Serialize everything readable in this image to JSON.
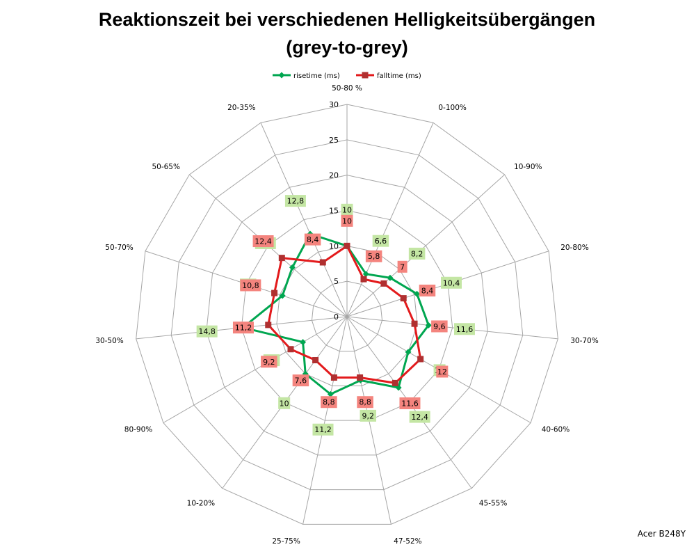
{
  "title_line1": "Reaktionszeit bei verschiedenen Helligkeitsübergängen",
  "title_line2": "(grey-to-grey)",
  "footer": "Acer B248Y",
  "chart_data": {
    "type": "radar",
    "categories": [
      "50-80 %",
      "0-100%",
      "10-90%",
      "20-80%",
      "30-70%",
      "40-60%",
      "45-55%",
      "47-52%",
      "25-75%",
      "10-20%",
      "80-90%",
      "30-50%",
      "50-70%",
      "50-65%",
      "20-35%"
    ],
    "rlim": [
      0,
      30
    ],
    "ticks": [
      0,
      5,
      10,
      15,
      20,
      25,
      30
    ],
    "tick_labels": [
      "0",
      "5",
      "10",
      "15",
      "20",
      "25",
      "30"
    ],
    "grid": true,
    "legend_position": "top",
    "series": [
      {
        "name": "risetime (ms)",
        "color": "#00a650",
        "label_bg": "#c4e6a4",
        "marker": "diamond",
        "values": [
          10,
          6.6,
          8.2,
          10.4,
          11.6,
          10,
          12.4,
          9.2,
          11.2,
          10,
          7.2,
          14.8,
          9.6,
          10.4,
          12.8
        ],
        "labels": [
          "10",
          "6,6",
          "8,2",
          "10,4",
          "11,6",
          "10",
          "12,4",
          "9,2",
          "11,2",
          "10",
          "7,2",
          "14,8",
          "9,6",
          "10,4",
          "12,8"
        ]
      },
      {
        "name": "falltime (ms)",
        "color": "#e31a1c",
        "label_bg": "#f4847e",
        "marker": "square",
        "values": [
          10,
          5.8,
          7,
          8.4,
          9.6,
          12,
          11.6,
          8.8,
          8.8,
          7.6,
          9.2,
          11.2,
          10.8,
          12.4,
          8.4
        ],
        "labels": [
          "10",
          "5,8",
          "7",
          "8,4",
          "9,6",
          "12",
          "11,6",
          "8,8",
          "8,8",
          "7,6",
          "9,2",
          "11,2",
          "10,8",
          "12,4",
          "8,4"
        ]
      }
    ]
  }
}
